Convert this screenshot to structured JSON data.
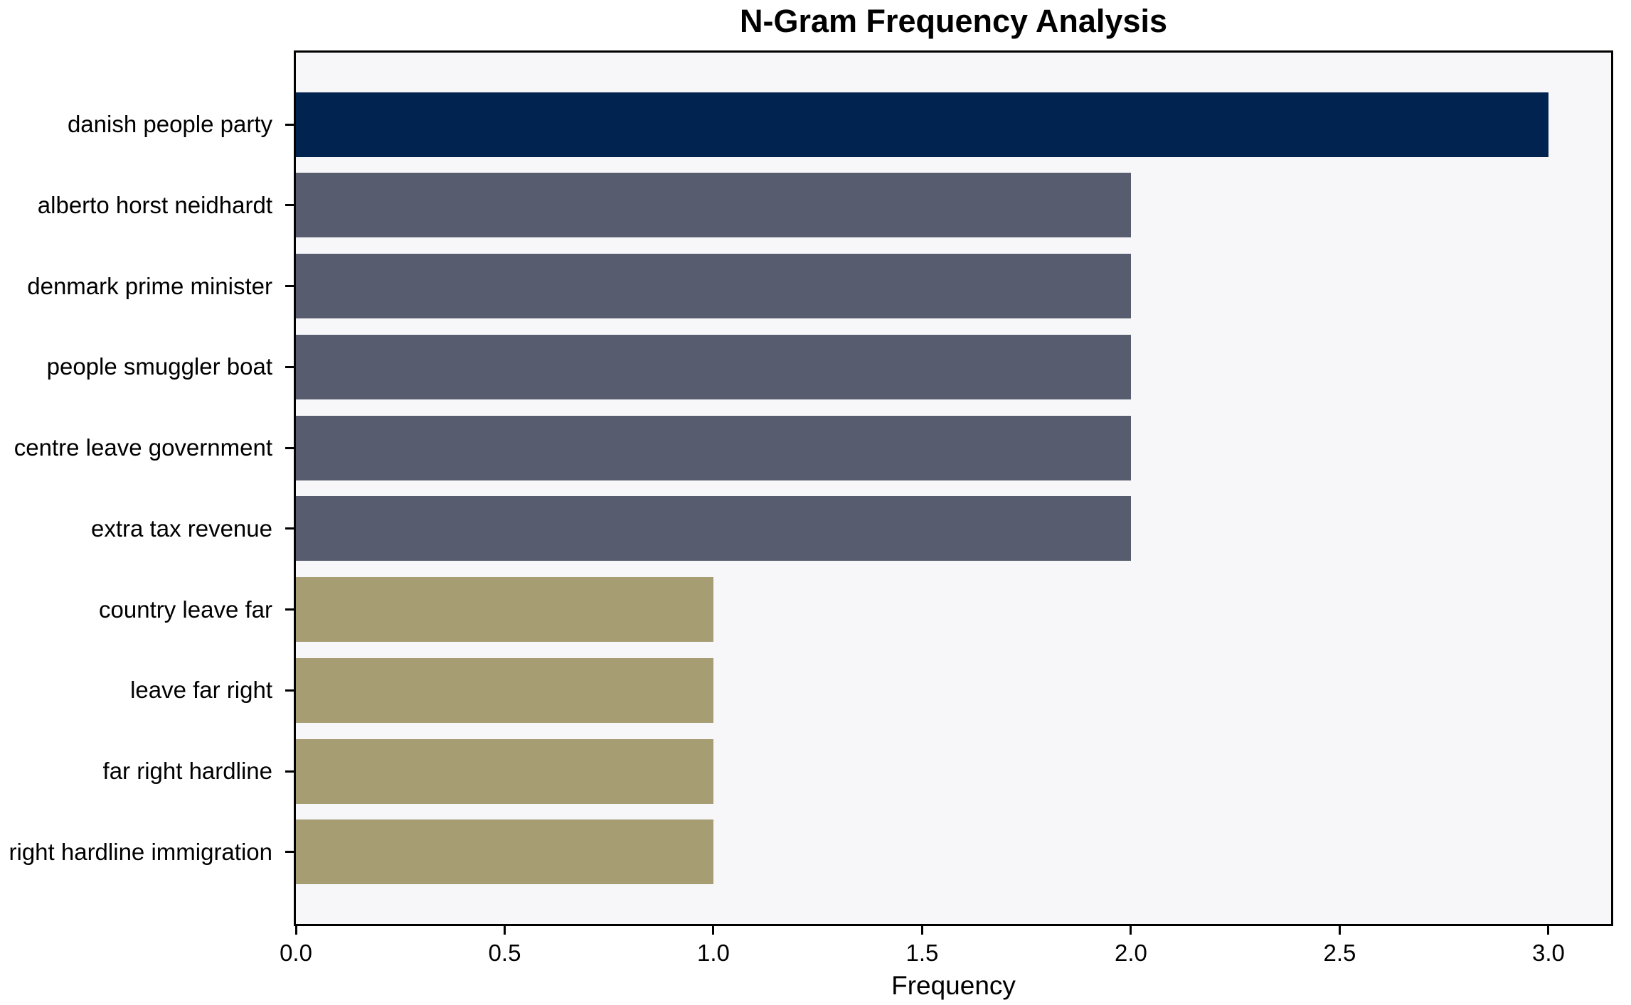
{
  "chart_data": {
    "type": "bar",
    "orientation": "horizontal",
    "title": "N-Gram Frequency Analysis",
    "xlabel": "Frequency",
    "ylabel": "",
    "categories": [
      "danish people party",
      "alberto horst neidhardt",
      "denmark prime minister",
      "people smuggler boat",
      "centre leave government",
      "extra tax revenue",
      "country leave far",
      "leave far right",
      "far right hardline",
      "right hardline immigration"
    ],
    "values": [
      3,
      2,
      2,
      2,
      2,
      2,
      1,
      1,
      1,
      1
    ],
    "bar_colors": [
      "#012350",
      "#575d6e",
      "#575d6e",
      "#575d6e",
      "#575d6e",
      "#575d6e",
      "#a69d73",
      "#a69d73",
      "#a69d73",
      "#a69d73"
    ],
    "xlim": [
      0,
      3.15
    ],
    "xticks": [
      0,
      0.5,
      1,
      1.5,
      2,
      2.5,
      3
    ],
    "xtick_labels": [
      "0.0",
      "0.5",
      "1.0",
      "1.5",
      "2.0",
      "2.5",
      "3.0"
    ],
    "grid": false,
    "legend": null,
    "plot_background": "#f7f7f9",
    "figure_background": "#ffffff",
    "spine_color": "#000000"
  }
}
